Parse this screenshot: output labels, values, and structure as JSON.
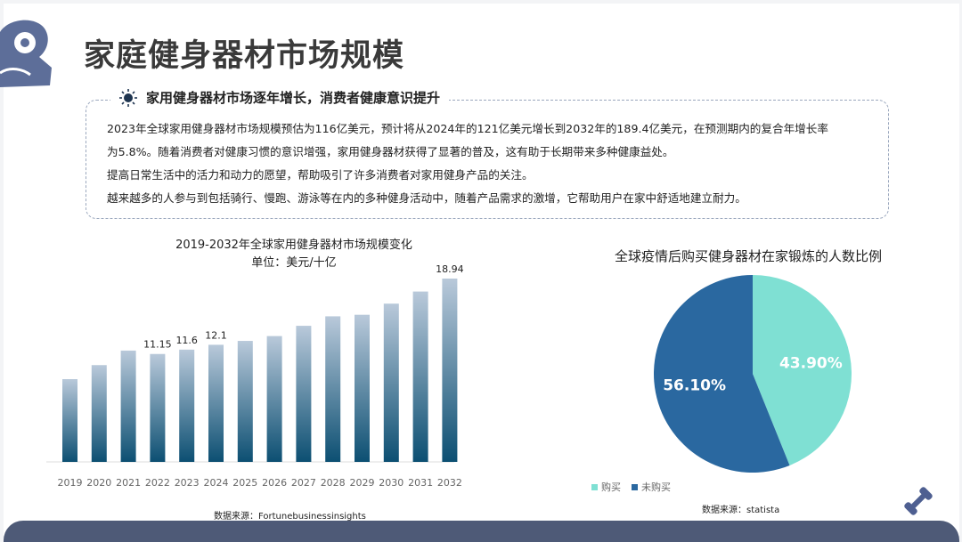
{
  "header": {
    "title": "家庭健身器材市场规模"
  },
  "summary": {
    "heading": "家用健身器材市场逐年增长，消费者健康意识提升",
    "lines": [
      "2023年全球家用健身器材市场规模预估为116亿美元，预计将从2024年的121亿美元增长到2032年的189.4亿美元，在预测期内的复合年增长率",
      "为5.8%。随着消费者对健康习惯的意识增强，家用健身器材获得了显著的普及，这有助于长期带来多种健康益处。",
      "提高日常生活中的活力和动力的愿望，帮助吸引了许多消费者对家用健身产品的关注。",
      "越来越多的人参与到包括骑行、慢跑、游泳等在内的多种健身活动中，随着产品需求的激增，它帮助用户在家中舒适地建立耐力。"
    ]
  },
  "bar_source": "数据来源：Fortunebusinessinsights",
  "pie_source": "数据来源：statista",
  "chart_data": [
    {
      "type": "bar",
      "title": "2019-2032年全球家用健身器材市场规模变化",
      "subtitle": "单位：美元/十亿",
      "categories": [
        "2019",
        "2020",
        "2021",
        "2022",
        "2023",
        "2024",
        "2025",
        "2026",
        "2027",
        "2028",
        "2029",
        "2030",
        "2031",
        "2032"
      ],
      "values": [
        8.55,
        10.0,
        11.5,
        11.15,
        11.6,
        12.1,
        12.5,
        13.0,
        14.06,
        15.04,
        15.2,
        16.35,
        17.6,
        18.94
      ],
      "data_labels": {
        "2022": "11.15",
        "2023": "11.6",
        "2024": "12.1",
        "2032": "18.94"
      },
      "ylim": [
        0,
        18.94
      ],
      "grid": false,
      "colors": {
        "top": "#b9c9da",
        "bottom": "#0c4f72"
      }
    },
    {
      "type": "pie",
      "title": "全球疫情后购买健身器材在家锻炼的人数比例",
      "slices": [
        {
          "name": "购买",
          "value": 43.9,
          "label": "43.90%",
          "color": "#7fe0d3"
        },
        {
          "name": "未购买",
          "value": 56.1,
          "label": "56.10%",
          "color": "#2a68a0"
        }
      ],
      "legend": "bottom-left"
    }
  ],
  "colors": {
    "accent": "#5d6e99",
    "footer": "#4e5a77"
  }
}
